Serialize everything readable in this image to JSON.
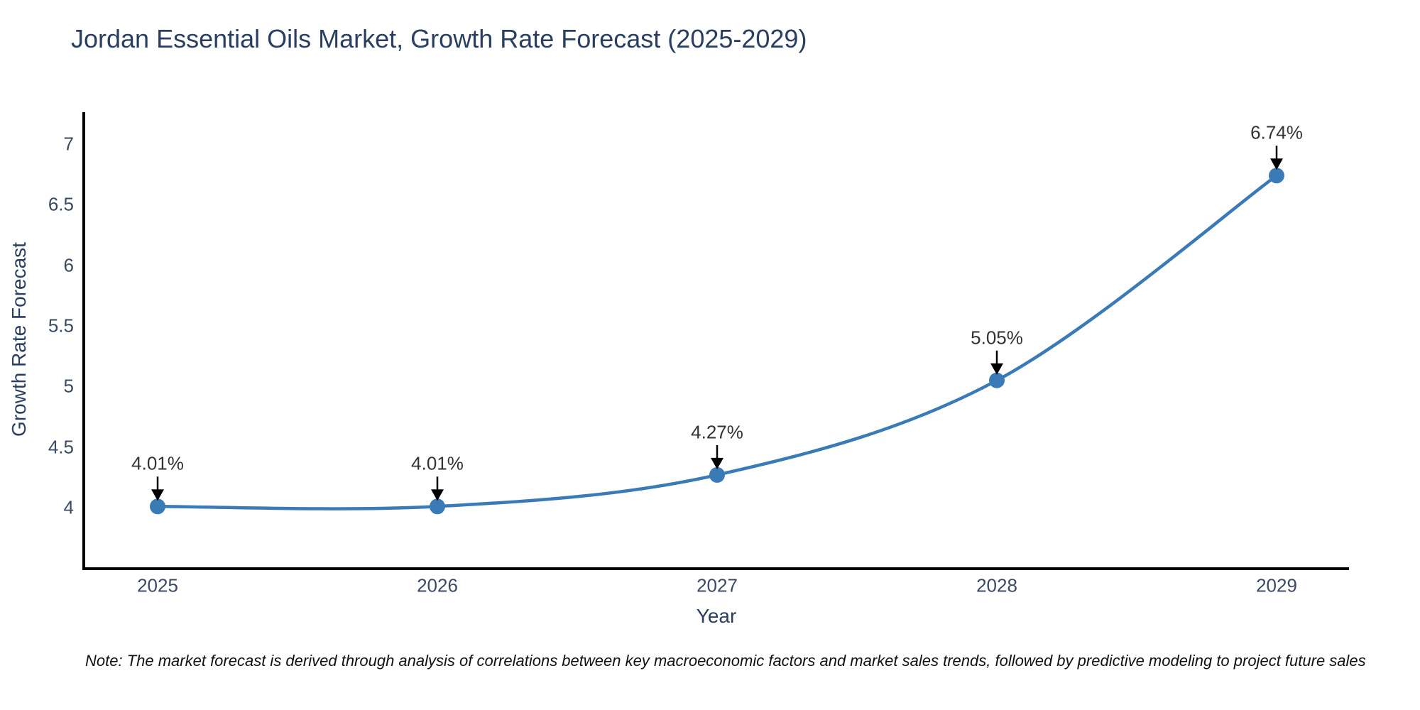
{
  "title": "Jordan Essential Oils Market, Growth Rate Forecast (2025-2029)",
  "note": "Note: The market forecast is derived through analysis of correlations between key macroeconomic factors and market sales trends, followed by predictive modeling to project future sales",
  "chart_data": {
    "type": "line",
    "title": "Jordan Essential Oils Market, Growth Rate Forecast (2025-2029)",
    "xlabel": "Year",
    "ylabel": "Growth Rate Forecast",
    "x": [
      2025,
      2026,
      2027,
      2028,
      2029
    ],
    "series": [
      {
        "name": "Growth Rate Forecast",
        "values": [
          4.01,
          4.01,
          4.27,
          5.05,
          6.74
        ]
      }
    ],
    "point_labels": [
      "4.01%",
      "4.01%",
      "4.27%",
      "5.05%",
      "6.74%"
    ],
    "yticks": [
      4,
      4.5,
      5,
      5.5,
      6,
      6.5,
      7
    ],
    "xticks": [
      2025,
      2026,
      2027,
      2028,
      2029
    ],
    "ylim": [
      3.5,
      7.25
    ],
    "xlim": [
      2024.74,
      2029.26
    ],
    "line_shape": "spline",
    "grid": false,
    "legend": "none",
    "annotation_arrows": true,
    "colors": {
      "line": "#3a7ab7",
      "marker": "#3a7ab7",
      "axis": "#000000",
      "arrow": "#000000",
      "title": "#2a3f5f",
      "tick": "#3b4a63",
      "annotation": "#333333",
      "note": "#111111",
      "background": "#ffffff"
    }
  }
}
